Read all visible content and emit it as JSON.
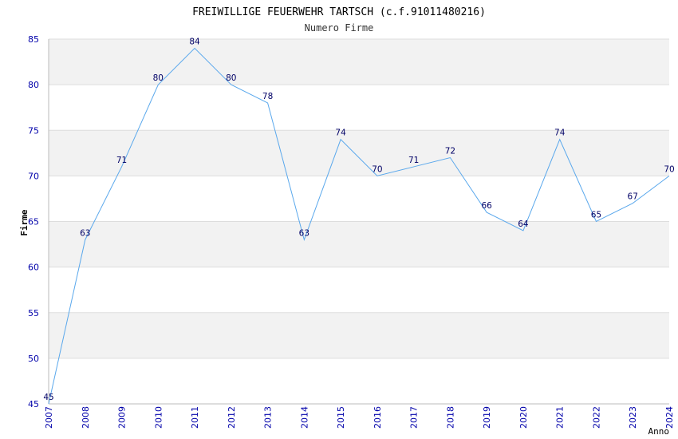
{
  "chart_data": {
    "type": "line",
    "title": "FREIWILLIGE FEUERWEHR TARTSCH (c.f.91011480216)",
    "subtitle": "Numero Firme",
    "xlabel": "Anno",
    "ylabel": "Firme",
    "ylim": [
      45,
      85
    ],
    "yticks": [
      45,
      50,
      55,
      60,
      65,
      70,
      75,
      80,
      85
    ],
    "x": [
      "2007",
      "2008",
      "2009",
      "2010",
      "2011",
      "2012",
      "2013",
      "2014",
      "2015",
      "2016",
      "2017",
      "2018",
      "2019",
      "2020",
      "2021",
      "2022",
      "2023",
      "2024"
    ],
    "values": [
      45,
      63,
      71,
      80,
      84,
      80,
      78,
      63,
      74,
      70,
      71,
      72,
      66,
      64,
      74,
      65,
      67,
      70
    ],
    "colors": {
      "line": "#5aa8ec",
      "band": "#f2f2f2",
      "grid": "#dddddd",
      "tick": "#0000aa",
      "label": "#000066"
    }
  }
}
